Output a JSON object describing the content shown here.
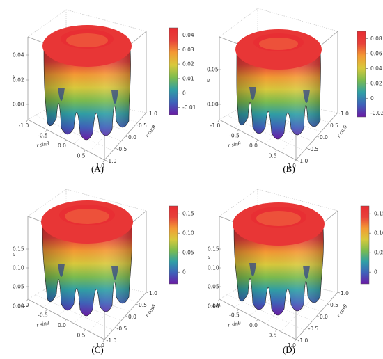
{
  "colors": {
    "cmap": [
      "#6a1ba5",
      "#3e62ba",
      "#2f9fa6",
      "#7cbc4e",
      "#d8c93c",
      "#f39a34",
      "#e8413a",
      "#e82b32"
    ],
    "box": "#9a9a9a",
    "grid": "#c8c8c8"
  },
  "chart_data": [
    {
      "id": "A",
      "type": "surface3d",
      "caption": "(A)",
      "zlabel": "u",
      "xlabel": "r sinθ",
      "ylabel": "r cosθ",
      "xticks": [
        "-1.0",
        "-0.5",
        "0.0",
        "0.5",
        "1.0"
      ],
      "yticks": [
        "1.0",
        "0.5",
        "0.0",
        "-0.5",
        "-1.0"
      ],
      "zticks": [
        "0.00",
        "0.02",
        "0.04"
      ],
      "zlim": [
        -0.015,
        0.045
      ],
      "colorbar": {
        "range": [
          -0.015,
          0.045
        ],
        "ticks": [
          "0.04",
          "0.03",
          "0.02",
          "0.01",
          "0",
          "-0.01"
        ],
        "tick_values": [
          0.04,
          0.03,
          0.02,
          0.01,
          0,
          -0.01
        ]
      }
    },
    {
      "id": "B",
      "type": "surface3d",
      "caption": "(B)",
      "zlabel": "u",
      "xlabel": "r sinθ",
      "ylabel": "r cosθ",
      "xticks": [
        "-1.0",
        "-0.5",
        "0.0",
        "0.5",
        "1.0"
      ],
      "yticks": [
        "1.0",
        "0.5",
        "0.0",
        "-0.5",
        "-1.0"
      ],
      "zticks": [
        "0.00",
        "0.05"
      ],
      "zlim": [
        -0.025,
        0.09
      ],
      "colorbar": {
        "range": [
          -0.025,
          0.09
        ],
        "ticks": [
          "0.08",
          "0.06",
          "0.04",
          "0.02",
          "0",
          "-0.02"
        ],
        "tick_values": [
          0.08,
          0.06,
          0.04,
          0.02,
          0,
          -0.02
        ]
      }
    },
    {
      "id": "C",
      "type": "surface3d",
      "caption": "(C)",
      "zlabel": "u",
      "xlabel": "r sinθ",
      "ylabel": "r cosθ",
      "xticks": [
        "-1.0",
        "-0.5",
        "0.0",
        "0.5",
        "1.0"
      ],
      "yticks": [
        "1.0",
        "0.5",
        "0.0",
        "-0.5",
        "-1.0"
      ],
      "zticks": [
        "0.00",
        "0.05",
        "0.10",
        "0.15"
      ],
      "zlim": [
        -0.03,
        0.17
      ],
      "colorbar": {
        "range": [
          -0.03,
          0.17
        ],
        "ticks": [
          "0.15",
          "0.10",
          "0.05",
          "0"
        ],
        "tick_values": [
          0.15,
          0.1,
          0.05,
          0
        ]
      }
    },
    {
      "id": "D",
      "type": "surface3d",
      "caption": "(D)",
      "zlabel": "u",
      "xlabel": "r sinθ",
      "ylabel": "r cosθ",
      "xticks": [
        "-1.0",
        "-0.5",
        "0.0",
        "0.5",
        "1.0"
      ],
      "yticks": [
        "1.0",
        "0.5",
        "0.0",
        "-0.5",
        "-1.0"
      ],
      "zticks": [
        "0.00",
        "0.05",
        "0.10",
        "0.15"
      ],
      "zlim": [
        -0.03,
        0.17
      ],
      "colorbar": {
        "range": [
          -0.03,
          0.17
        ],
        "ticks": [
          "0.15",
          "0.10",
          "0.05",
          "0"
        ],
        "tick_values": [
          0.15,
          0.1,
          0.05,
          0
        ]
      }
    }
  ]
}
